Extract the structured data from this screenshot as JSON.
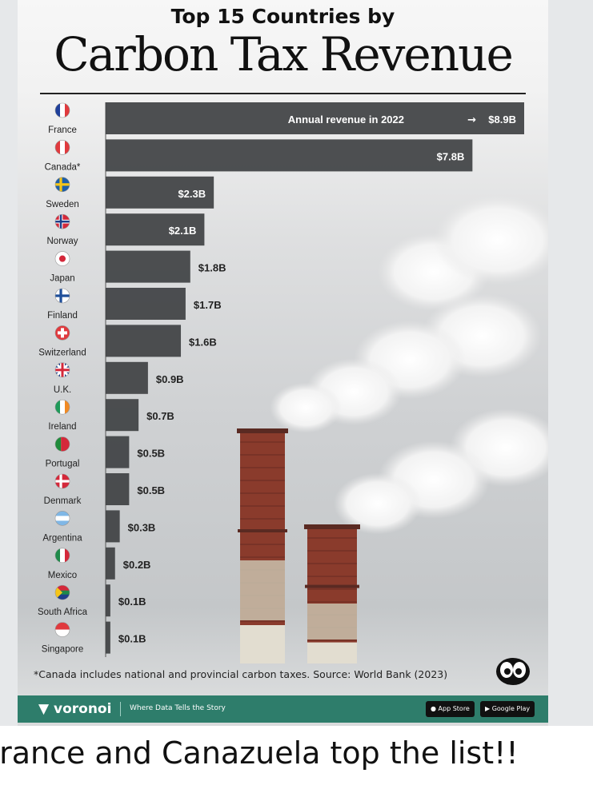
{
  "header": {
    "title_small": "Top 15 Countries by",
    "title_big": "Carbon Tax Revenue"
  },
  "chart_data": {
    "type": "bar",
    "orientation": "horizontal",
    "title": "Top 15 Countries by Carbon Tax Revenue",
    "annotation": "Annual revenue in 2022 → $8.9B",
    "categories": [
      "France",
      "Canada*",
      "Sweden",
      "Norway",
      "Japan",
      "Finland",
      "Switzerland",
      "U.K.",
      "Ireland",
      "Portugal",
      "Denmark",
      "Argentina",
      "Mexico",
      "South Africa",
      "Singapore"
    ],
    "values": [
      8.9,
      7.8,
      2.3,
      2.1,
      1.8,
      1.7,
      1.6,
      0.9,
      0.7,
      0.5,
      0.5,
      0.3,
      0.2,
      0.1,
      0.1
    ],
    "value_labels": [
      "$8.9B",
      "$7.8B",
      "$2.3B",
      "$2.1B",
      "$1.8B",
      "$1.7B",
      "$1.6B",
      "$0.9B",
      "$0.7B",
      "$0.5B",
      "$0.5B",
      "$0.3B",
      "$0.2B",
      "$0.1B",
      "$0.1B"
    ],
    "unit": "USD billions",
    "bar_color": "#3f4143",
    "grid": false
  },
  "flags": [
    {
      "country": "France",
      "colors": [
        "#1f3f9a",
        "#ffffff",
        "#e03a3e"
      ],
      "kind": "v3"
    },
    {
      "country": "Canada",
      "colors": [
        "#e03a3e",
        "#ffffff",
        "#e03a3e"
      ],
      "kind": "v3"
    },
    {
      "country": "Sweden",
      "colors": [
        "#1f5fa8",
        "#f5c518"
      ],
      "kind": "nordic"
    },
    {
      "country": "Norway",
      "colors": [
        "#d4283a",
        "#ffffff",
        "#1f3f8a"
      ],
      "kind": "nordic2"
    },
    {
      "country": "Japan",
      "colors": [
        "#ffffff",
        "#d4283a"
      ],
      "kind": "dot"
    },
    {
      "country": "Finland",
      "colors": [
        "#ffffff",
        "#1f4f9a"
      ],
      "kind": "nordic"
    },
    {
      "country": "Switzerland",
      "colors": [
        "#e03a3e",
        "#ffffff"
      ],
      "kind": "cross"
    },
    {
      "country": "U.K.",
      "colors": [
        "#1f3f8a",
        "#ffffff",
        "#d4283a"
      ],
      "kind": "uk"
    },
    {
      "country": "Ireland",
      "colors": [
        "#1f9a5a",
        "#ffffff",
        "#f08a24"
      ],
      "kind": "v3"
    },
    {
      "country": "Portugal",
      "colors": [
        "#1f8a3a",
        "#d4283a"
      ],
      "kind": "v2"
    },
    {
      "country": "Denmark",
      "colors": [
        "#d4283a",
        "#ffffff"
      ],
      "kind": "nordic"
    },
    {
      "country": "Argentina",
      "colors": [
        "#7fb7e6",
        "#ffffff",
        "#7fb7e6"
      ],
      "kind": "h3"
    },
    {
      "country": "Mexico",
      "colors": [
        "#1f8a4a",
        "#ffffff",
        "#d4283a"
      ],
      "kind": "v3"
    },
    {
      "country": "South Africa",
      "colors": [
        "#1f8a4a",
        "#f5c518",
        "#1f3f8a"
      ],
      "kind": "za"
    },
    {
      "country": "Singapore",
      "colors": [
        "#e03a3e",
        "#ffffff"
      ],
      "kind": "h2"
    }
  ],
  "footnote": "*Canada includes national and provincial carbon taxes. Source: World Bank (2023)",
  "footer": {
    "brand": "voronoi",
    "tagline": "Where Data Tells the Story",
    "app_store": "App Store",
    "google_play": "Google Play"
  },
  "caption": "France and Canazuela top the list!!"
}
